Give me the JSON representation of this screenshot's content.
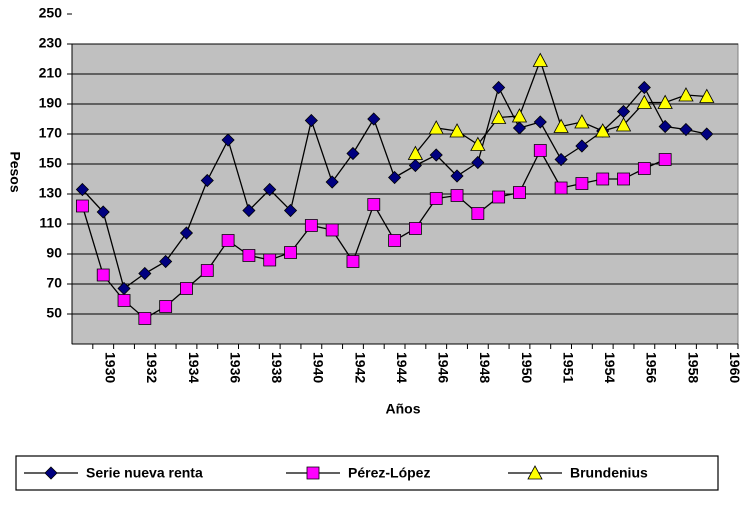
{
  "chart_data": {
    "type": "line",
    "x_label": "Años",
    "y_label": "Pesos",
    "categories": [
      null,
      "1930",
      null,
      "1932",
      null,
      "1934",
      null,
      "1936",
      null,
      "1938",
      null,
      "1940",
      null,
      "1942",
      null,
      "1944",
      null,
      "1946",
      null,
      "1948",
      null,
      "1950",
      null,
      "1951",
      null,
      "1954",
      null,
      "1956",
      null,
      "1958",
      null,
      "1960"
    ],
    "series": [
      {
        "name": "Serie nueva renta",
        "color": "#000080",
        "marker": "diamond",
        "values": [
          133,
          118,
          67,
          77,
          85,
          104,
          139,
          166,
          119,
          133,
          119,
          179,
          138,
          157,
          180,
          141,
          149,
          156,
          142,
          151,
          201,
          174,
          178,
          153,
          162,
          172,
          185,
          201,
          175,
          173,
          170,
          null
        ]
      },
      {
        "name": "Pérez-López",
        "color": "#ff00ff",
        "marker": "square",
        "values": [
          122,
          76,
          59,
          47,
          55,
          67,
          79,
          99,
          89,
          86,
          91,
          109,
          106,
          85,
          123,
          99,
          107,
          127,
          129,
          117,
          128,
          131,
          159,
          134,
          137,
          140,
          140,
          147,
          153,
          null,
          null,
          null
        ]
      },
      {
        "name": "Brundenius",
        "color": "#ffff00",
        "marker": "triangle",
        "values": [
          null,
          null,
          null,
          null,
          null,
          null,
          null,
          null,
          null,
          null,
          null,
          null,
          null,
          null,
          null,
          null,
          157,
          174,
          172,
          163,
          181,
          182,
          219,
          175,
          178,
          172,
          176,
          191,
          191,
          196,
          195,
          null
        ]
      }
    ],
    "line_color": "#000000",
    "ylim": [
      30,
      250
    ],
    "yticks": [
      50,
      70,
      90,
      110,
      130,
      150,
      170,
      190,
      210,
      230,
      250
    ],
    "grid": true,
    "plot_background": "#c0c0c0",
    "legend": "bottom"
  }
}
